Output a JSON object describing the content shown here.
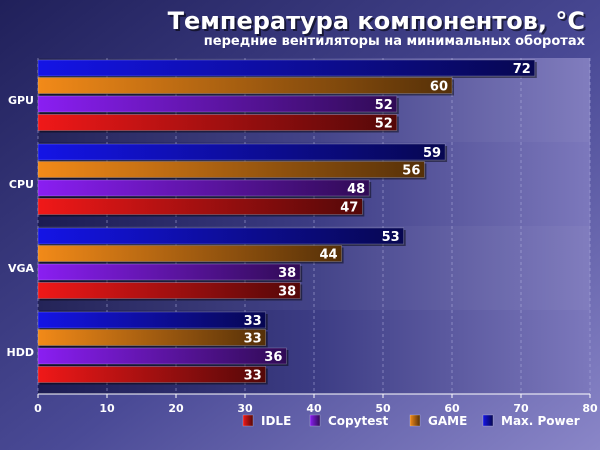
{
  "chart_data": {
    "type": "bar",
    "orientation": "horizontal",
    "title": "Температура компонентов, °C",
    "subtitle": "передние вентиляторы на минимальных оборотах",
    "categories": [
      "GPU",
      "CPU",
      "VGA",
      "HDD"
    ],
    "series": [
      {
        "name": "Max. Power",
        "color": "#1414e6",
        "values": [
          72,
          59,
          53,
          33
        ]
      },
      {
        "name": "GAME",
        "color": "#f28a18",
        "values": [
          60,
          56,
          44,
          33
        ]
      },
      {
        "name": "Copytest",
        "color": "#8a1ef2",
        "values": [
          52,
          48,
          38,
          36
        ]
      },
      {
        "name": "IDLE",
        "color": "#f01818",
        "values": [
          52,
          47,
          38,
          33
        ]
      }
    ],
    "legend_order": [
      "IDLE",
      "Copytest",
      "GAME",
      "Max. Power"
    ],
    "xlim": [
      0,
      80
    ],
    "xticks": [
      0,
      10,
      20,
      30,
      40,
      50,
      60,
      70,
      80
    ],
    "grid": true,
    "legend_position": "bottom-right"
  }
}
